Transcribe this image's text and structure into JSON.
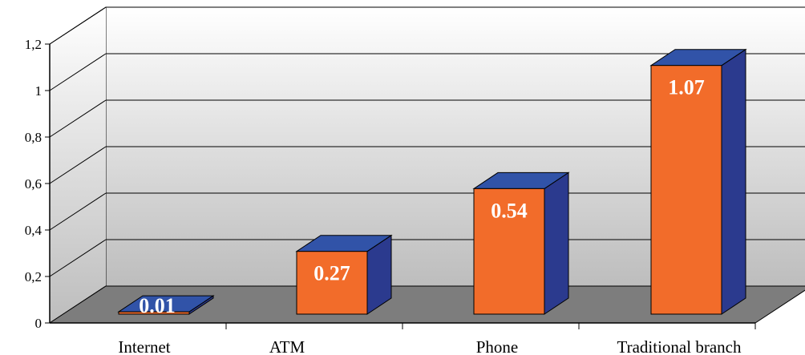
{
  "chart_data": {
    "type": "bar",
    "style": "3d-column",
    "categories": [
      "Internet",
      "ATM",
      "Phone",
      "Traditional branch"
    ],
    "values": [
      0.01,
      0.27,
      0.54,
      1.07
    ],
    "data_labels": [
      "0.01",
      "0.27",
      "0.54",
      "1.07"
    ],
    "title": "",
    "xlabel": "",
    "ylabel": "",
    "ylim": [
      0,
      1.2
    ],
    "yticks": [
      0,
      0.2,
      0.4,
      0.6,
      0.8,
      1,
      1.2
    ],
    "ytick_labels": [
      "0",
      "0,2",
      "0,4",
      "0,6",
      "0,8",
      "1",
      "1,2"
    ],
    "grid": true,
    "legend": "none",
    "colors": {
      "bar_front": "#F26C2A",
      "bar_side": "#2B3A8E",
      "bar_top": "#3153A8",
      "floor": "#7D7D7D",
      "wall_top": "#FFFFFF",
      "wall_bottom": "#BDBDBD"
    }
  }
}
